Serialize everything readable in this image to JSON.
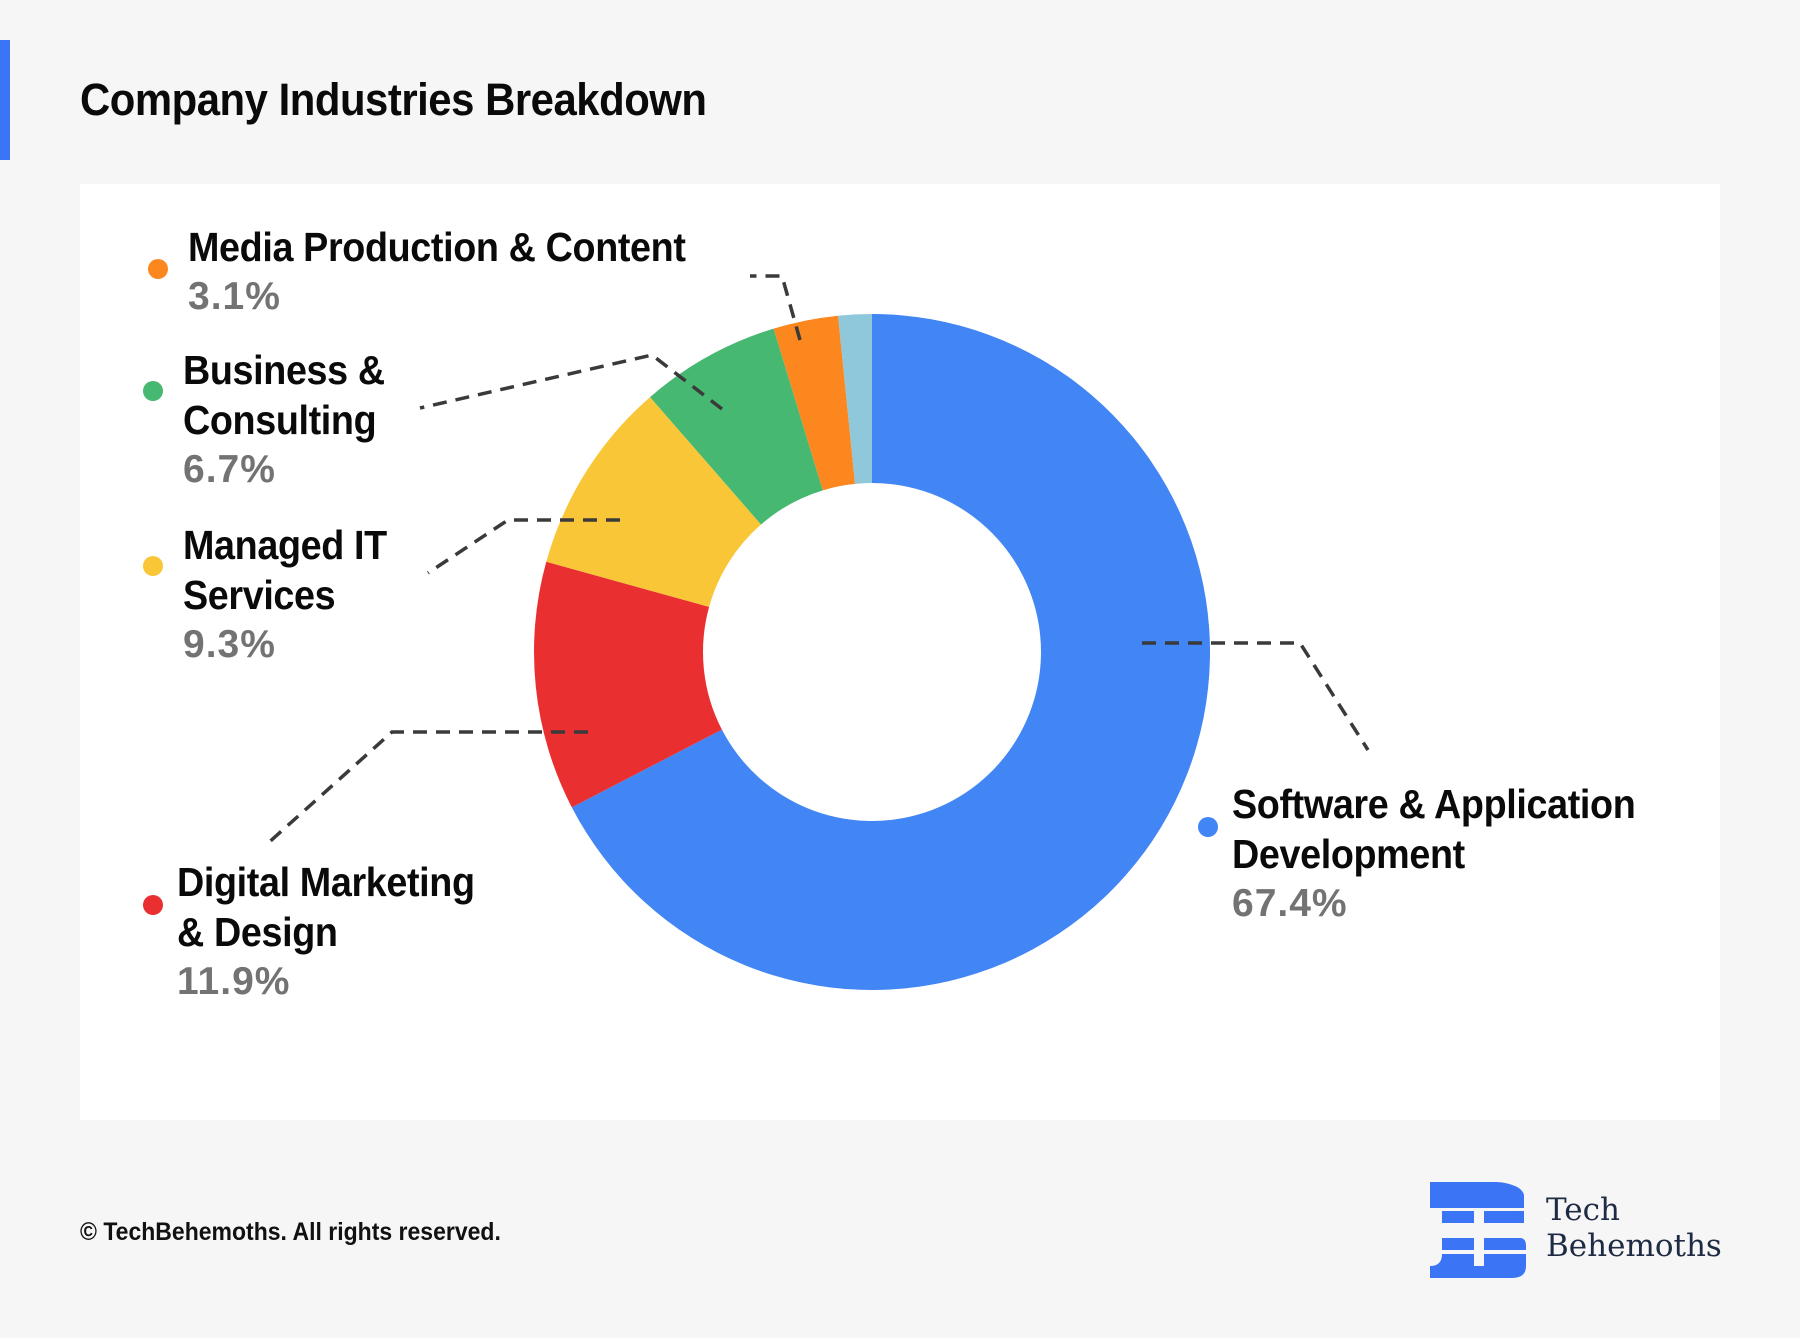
{
  "header": {
    "title": "Company Industries Breakdown",
    "accent_color": "#3b74f5"
  },
  "chart_data": {
    "type": "pie",
    "variant": "donut",
    "title": "Company Industries Breakdown",
    "start": "12 o'clock",
    "direction": "clockwise",
    "slices": [
      {
        "label": "Software & Application Development",
        "value": 67.4,
        "display": "67.4%",
        "color": "#4285f4",
        "labeled": true
      },
      {
        "label": "Digital Marketing & Design",
        "value": 11.9,
        "display": "11.9%",
        "color": "#ea2f30",
        "labeled": true
      },
      {
        "label": "Managed IT Services",
        "value": 9.3,
        "display": "9.3%",
        "color": "#f9c638",
        "labeled": true
      },
      {
        "label": "Business & Consulting",
        "value": 6.7,
        "display": "6.7%",
        "color": "#46b872",
        "labeled": true
      },
      {
        "label": "Media Production & Content",
        "value": 3.1,
        "display": "3.1%",
        "color": "#fc871f",
        "labeled": true
      },
      {
        "label": "Other",
        "value": 1.6,
        "display": "",
        "color": "#8ec8da",
        "labeled": false
      }
    ],
    "legend": "callout labels around donut",
    "grid": false
  },
  "labels": {
    "software": {
      "name": "Software & Application\nDevelopment",
      "pct": "67.4%"
    },
    "digital": {
      "name": "Digital Marketing\n& Design",
      "pct": "11.9%"
    },
    "managed": {
      "name": "Managed IT\nServices",
      "pct": "9.3%"
    },
    "business": {
      "name": "Business &\nConsulting",
      "pct": "6.7%"
    },
    "media": {
      "name": "Media Production & Content",
      "pct": "3.1%"
    }
  },
  "footer": {
    "copyright": "© TechBehemoths. All rights reserved.",
    "logo_line1": "Tech",
    "logo_line2": "Behemoths",
    "logo_color": "#3b74f5"
  }
}
